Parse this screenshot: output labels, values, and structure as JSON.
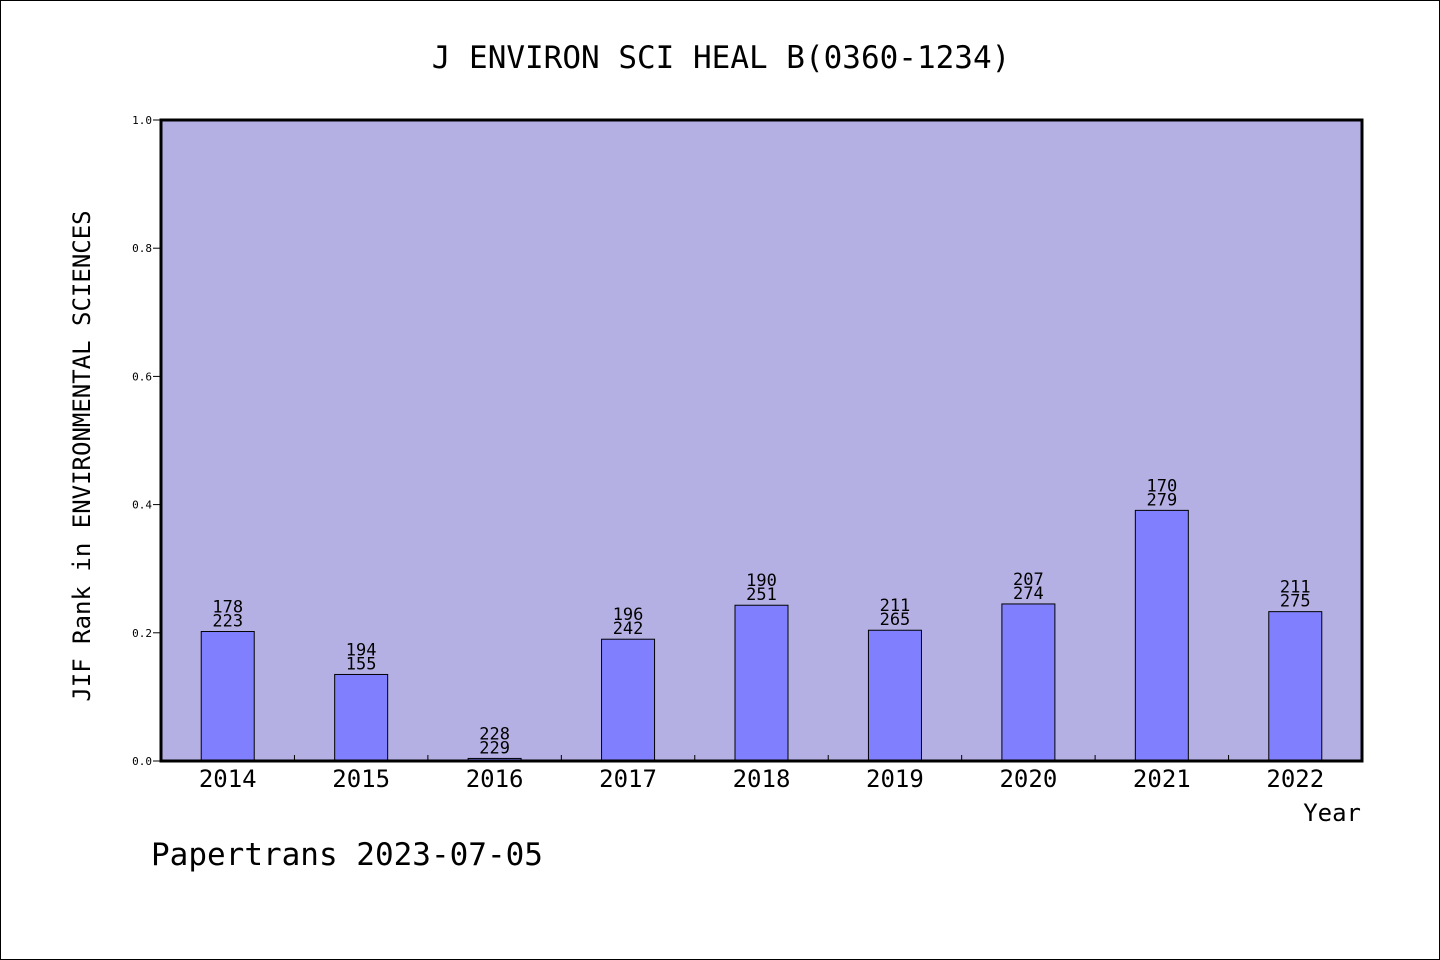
{
  "chart_data": {
    "type": "bar",
    "title": "J ENVIRON SCI HEAL B(0360-1234)",
    "xlabel": "Year",
    "ylabel": "JIF Rank in ENVIRONMENTAL SCIENCES",
    "ylim": [
      0,
      1.0
    ],
    "yticks": [
      "0.0",
      "0.2",
      "0.4",
      "0.6",
      "0.8",
      "1.0"
    ],
    "categories": [
      "2014",
      "2015",
      "2016",
      "2017",
      "2018",
      "2019",
      "2020",
      "2021",
      "2022"
    ],
    "values": [
      0.202,
      0.135,
      0.004,
      0.19,
      0.243,
      0.204,
      0.245,
      0.391,
      0.233
    ],
    "label_top": [
      "178",
      "194",
      "228",
      "196",
      "190",
      "211",
      "207",
      "170",
      "211"
    ],
    "label_bottom": [
      "223",
      "155",
      "229",
      "242",
      "251",
      "265",
      "274",
      "279",
      "275"
    ],
    "plot_background": "#b5b0e3",
    "bar_color": "#8080ff"
  },
  "footer": "Papertrans 2023-07-05"
}
